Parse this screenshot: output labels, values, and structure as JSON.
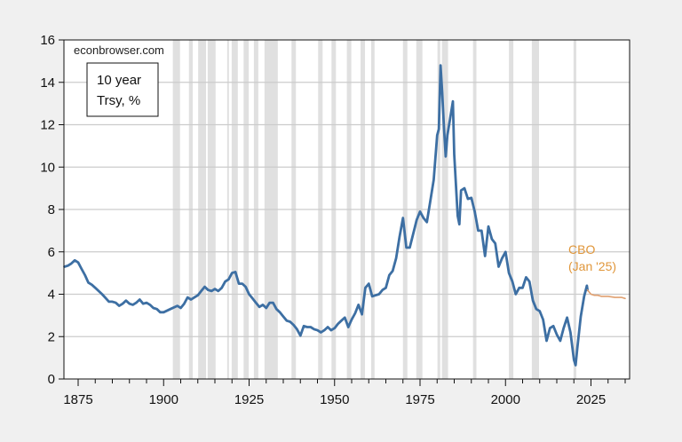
{
  "chart_data": {
    "type": "line",
    "title": "",
    "watermark": "econbrowser.com",
    "legend_box": [
      "10 year",
      "Trsy, %"
    ],
    "xlabel": "",
    "ylabel": "",
    "xlim": [
      1871,
      2036
    ],
    "ylim": [
      0,
      16
    ],
    "xticks": [
      1875,
      1900,
      1925,
      1950,
      1975,
      2000,
      2025
    ],
    "yticks": [
      0,
      2,
      4,
      6,
      8,
      10,
      12,
      14,
      16
    ],
    "grid": {
      "horizontal": true,
      "vertical": false
    },
    "colors": {
      "series_main": "#3d6fa3",
      "series_cbo": "#e0a070",
      "annotation": "#e0963a",
      "recession": "#e0e0e0",
      "page_bg": "#f0f0f0",
      "plot_bg": "#ffffff",
      "grid": "#cccccc"
    },
    "annotations": [
      {
        "text_lines": [
          "CBO",
          "(Jan '25)"
        ],
        "x": 2026,
        "y": 5.8
      }
    ],
    "recessions": [
      [
        1902.7,
        1904.8
      ],
      [
        1907.4,
        1908.5
      ],
      [
        1910.1,
        1912.4
      ],
      [
        1912.9,
        1915.2
      ],
      [
        1918.6,
        1919.1
      ],
      [
        1919.9,
        1921.7
      ],
      [
        1923.4,
        1924.9
      ],
      [
        1926.4,
        1927.7
      ],
      [
        1929.5,
        1933.4
      ],
      [
        1937.4,
        1938.7
      ],
      [
        1945.2,
        1946.5
      ],
      [
        1949.1,
        1950.4
      ],
      [
        1953.6,
        1954.9
      ],
      [
        1957.6,
        1958.9
      ],
      [
        1960.7,
        1961.7
      ],
      [
        1970.0,
        1971.3
      ],
      [
        1973.9,
        1975.7
      ],
      [
        1980.1,
        1980.9
      ],
      [
        1981.4,
        1983.2
      ],
      [
        1990.5,
        1991.5
      ],
      [
        2001.0,
        2002.3
      ],
      [
        2007.7,
        2009.8
      ],
      [
        2019.9,
        2020.7
      ]
    ],
    "series": [
      {
        "name": "10 year Trsy, %",
        "x": [
          1871,
          1872,
          1873,
          1874,
          1875,
          1876,
          1877,
          1878,
          1879,
          1880,
          1882,
          1884,
          1885,
          1886,
          1887,
          1888,
          1889,
          1890,
          1891,
          1892,
          1893,
          1894,
          1895,
          1896,
          1897,
          1898,
          1899,
          1900,
          1902,
          1904,
          1905,
          1906,
          1907,
          1908,
          1909,
          1910,
          1911,
          1912,
          1913,
          1914,
          1915,
          1916,
          1917,
          1918,
          1919,
          1920,
          1921,
          1922,
          1923,
          1924,
          1925,
          1926,
          1927,
          1928,
          1929,
          1930,
          1931,
          1932,
          1933,
          1934,
          1935,
          1936,
          1937,
          1938,
          1939,
          1940,
          1941,
          1942,
          1943,
          1944,
          1945,
          1946,
          1947,
          1948,
          1949,
          1950,
          1951,
          1952,
          1953,
          1954,
          1955,
          1956,
          1957,
          1958,
          1959,
          1960,
          1961,
          1962,
          1963,
          1964,
          1965,
          1966,
          1967,
          1968,
          1969,
          1970,
          1971,
          1972,
          1973,
          1974,
          1975,
          1976,
          1977,
          1978,
          1979,
          1980,
          1980.5,
          1981,
          1981.5,
          1982,
          1982.5,
          1983,
          1984,
          1984.6,
          1985,
          1986,
          1986.5,
          1987,
          1988,
          1989,
          1990,
          1991,
          1992,
          1993,
          1994,
          1995,
          1996,
          1997,
          1998,
          1999,
          2000,
          2001,
          2002,
          2003,
          2004,
          2005,
          2006,
          2007,
          2008,
          2009,
          2010,
          2011,
          2012,
          2013,
          2014,
          2015,
          2016,
          2017,
          2018,
          2019,
          2020,
          2020.5,
          2021,
          2022,
          2023,
          2023.8,
          2024
        ],
        "values": [
          5.3,
          5.35,
          5.45,
          5.6,
          5.5,
          5.2,
          4.9,
          4.55,
          4.45,
          4.3,
          4.0,
          3.65,
          3.65,
          3.6,
          3.45,
          3.55,
          3.7,
          3.55,
          3.5,
          3.6,
          3.75,
          3.55,
          3.6,
          3.5,
          3.35,
          3.3,
          3.15,
          3.15,
          3.3,
          3.45,
          3.35,
          3.55,
          3.85,
          3.75,
          3.85,
          3.95,
          4.15,
          4.35,
          4.2,
          4.15,
          4.25,
          4.15,
          4.3,
          4.6,
          4.7,
          5.0,
          5.05,
          4.5,
          4.5,
          4.35,
          4.0,
          3.8,
          3.6,
          3.4,
          3.5,
          3.35,
          3.6,
          3.6,
          3.3,
          3.15,
          2.95,
          2.75,
          2.7,
          2.55,
          2.35,
          2.05,
          2.5,
          2.45,
          2.45,
          2.35,
          2.3,
          2.2,
          2.3,
          2.45,
          2.3,
          2.4,
          2.6,
          2.75,
          2.9,
          2.45,
          2.8,
          3.1,
          3.5,
          3.05,
          4.3,
          4.5,
          3.9,
          3.95,
          4.0,
          4.2,
          4.3,
          4.9,
          5.1,
          5.7,
          6.7,
          7.6,
          6.2,
          6.2,
          6.85,
          7.5,
          7.9,
          7.6,
          7.4,
          8.4,
          9.4,
          11.5,
          11.8,
          14.8,
          13.5,
          11.9,
          10.5,
          11.5,
          12.5,
          13.1,
          10.6,
          7.7,
          7.3,
          8.9,
          9.0,
          8.5,
          8.55,
          7.9,
          7.0,
          7.0,
          5.8,
          7.2,
          6.6,
          6.4,
          5.3,
          5.7,
          6.0,
          5.0,
          4.6,
          4.0,
          4.3,
          4.3,
          4.8,
          4.6,
          3.7,
          3.3,
          3.2,
          2.8,
          1.8,
          2.4,
          2.5,
          2.1,
          1.8,
          2.4,
          2.9,
          2.2,
          0.9,
          0.65,
          1.45,
          2.95,
          3.9,
          4.4,
          4.2
        ]
      },
      {
        "name": "CBO (Jan '25)",
        "x": [
          2024,
          2025,
          2026,
          2027,
          2028,
          2030,
          2032,
          2034,
          2035
        ],
        "values": [
          4.2,
          4.0,
          3.95,
          3.95,
          3.9,
          3.9,
          3.85,
          3.85,
          3.8
        ]
      }
    ]
  }
}
